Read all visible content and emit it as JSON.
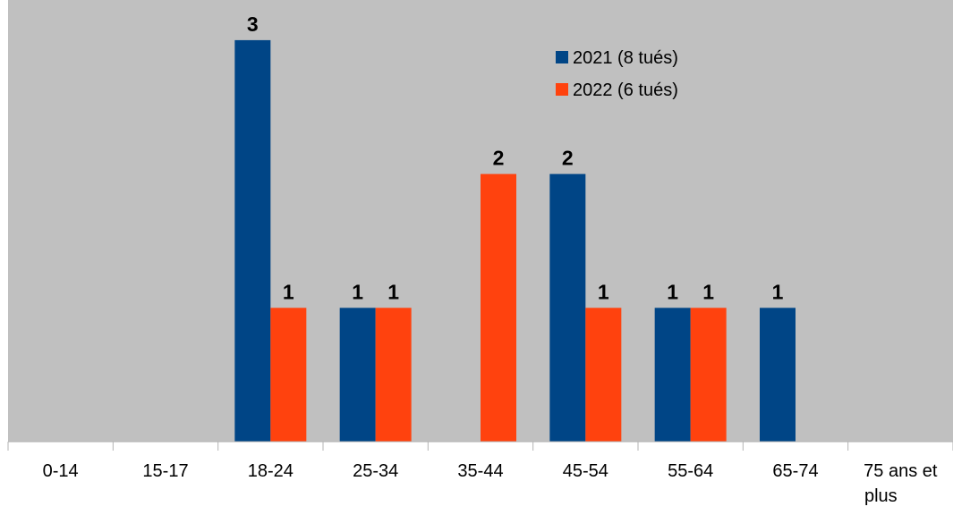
{
  "chart_data": {
    "type": "bar",
    "categories": [
      "0-14",
      "15-17",
      "18-24",
      "25-34",
      "35-44",
      "45-54",
      "55-64",
      "65-74",
      "75 ans et plus"
    ],
    "series": [
      {
        "name": "2021 (8 tués)",
        "values": [
          0,
          0,
          3,
          1,
          0,
          2,
          1,
          1,
          0
        ],
        "color": "#004586"
      },
      {
        "name": "2022 (6 tués)",
        "values": [
          0,
          0,
          1,
          1,
          2,
          1,
          1,
          0,
          0
        ],
        "color": "#ff420e"
      }
    ],
    "ylim": [
      0,
      3.3
    ],
    "grid": false,
    "legend_position": "top-right",
    "data_labels": true,
    "plot_background": "#c0c0c0",
    "title": "",
    "xlabel": "",
    "ylabel": ""
  }
}
